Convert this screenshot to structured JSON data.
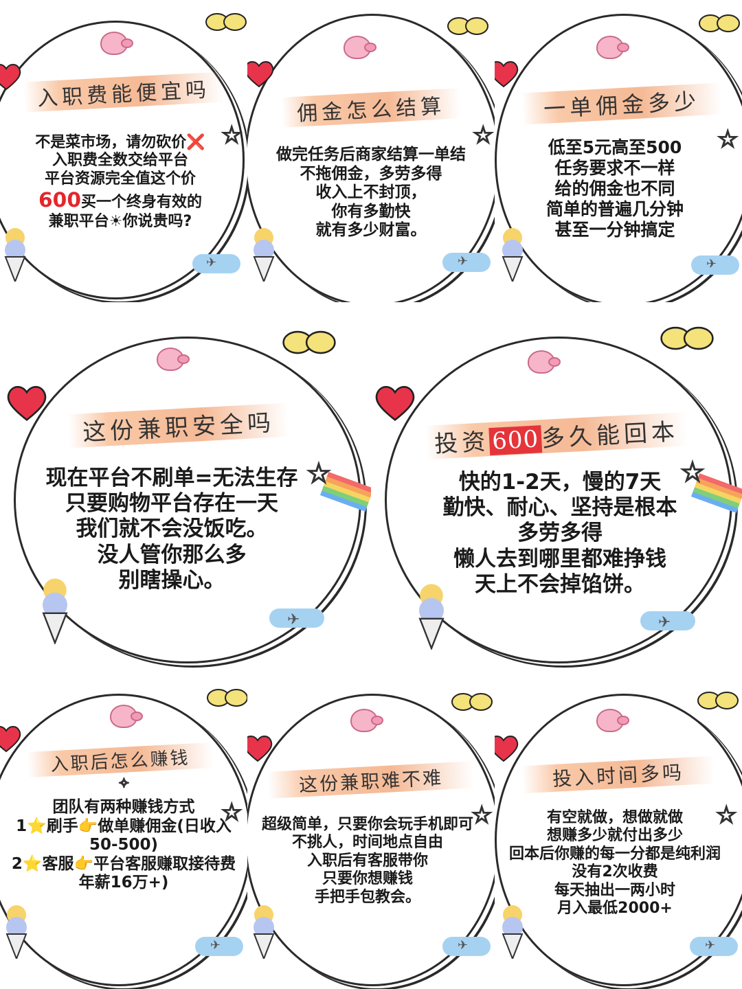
{
  "cards": [
    {
      "title": "入职费能便宜吗",
      "lines": [
        "不是菜市场，请勿砍价❌",
        "入职费全数交给平台",
        "平台资源完全值这个价",
        "买一个终身有效的",
        "兼职平台☀你说贵吗?"
      ],
      "highlight_number": "600"
    },
    {
      "title": "佣金怎么结算",
      "lines": [
        "做完任务后商家结算一单结",
        "不拖佣金，多劳多得",
        "收入上不封顶，",
        "你有多勤快",
        "就有多少财富。"
      ]
    },
    {
      "title": "一单佣金多少",
      "lines": [
        "低至5元高至500",
        "任务要求不一样",
        "给的佣金也不同",
        "简单的普遍几分钟",
        "甚至一分钟搞定"
      ]
    },
    {
      "title": "这份兼职安全吗",
      "lines": [
        "现在平台不刷单=无法生存",
        "只要购物平台存在一天",
        "我们就不会没饭吃。",
        "没人管你那么多",
        "别瞎操心。"
      ]
    },
    {
      "title_pre": "投资",
      "title_hl": "600",
      "title_post": "多久能回本",
      "lines": [
        "快的1-2天，慢的7天",
        "勤快、耐心、坚持是根本",
        "多劳多得",
        "懒人去到哪里都难挣钱",
        "天上不会掉馅饼。"
      ]
    },
    {
      "title": "入职后怎么赚钱",
      "lines": [
        "团队有两种赚钱方式",
        "1⭐刷手👉做单赚佣金(日收入",
        "50-500)",
        "2⭐客服👉平台客服赚取接待费",
        "年薪16万+)"
      ]
    },
    {
      "title": "这份兼职难不难",
      "lines": [
        "超级简单，只要你会玩手机即可",
        "不挑人，时间地点自由",
        "入职后有客服带你",
        "只要你想赚钱",
        "手把手包教会。"
      ]
    },
    {
      "title": "投入时间多吗",
      "lines": [
        "有空就做，想做就做",
        "想赚多少就付出多少",
        "回本后你赚的每一分都是纯利润",
        "没有2次收费",
        "每天抽出一两小时",
        "月入最低2000+"
      ]
    }
  ]
}
